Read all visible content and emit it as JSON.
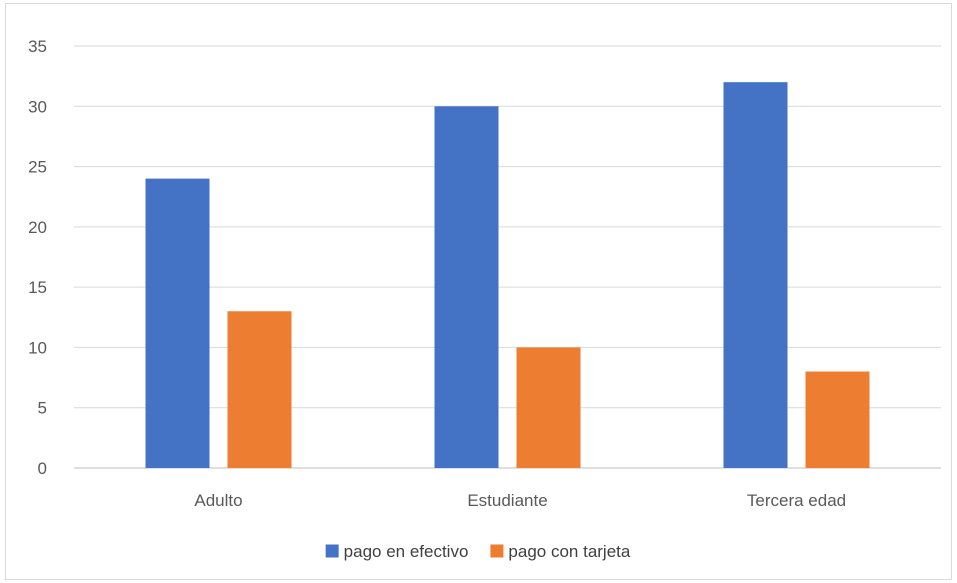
{
  "chart_data": {
    "type": "bar",
    "categories": [
      "Adulto",
      "Estudiante",
      "Tercera edad"
    ],
    "series": [
      {
        "name": "pago en efectivo",
        "values": [
          24,
          30,
          32
        ],
        "color": "#4472C4"
      },
      {
        "name": "pago con tarjeta",
        "values": [
          13,
          10,
          8
        ],
        "color": "#ED7D31"
      }
    ],
    "ylim": [
      0,
      35
    ],
    "yticks": [
      "0",
      "5",
      "10",
      "15",
      "20",
      "25",
      "30",
      "35"
    ],
    "grid": true,
    "legend_position": "bottom",
    "title": "",
    "xlabel": "",
    "ylabel": ""
  }
}
